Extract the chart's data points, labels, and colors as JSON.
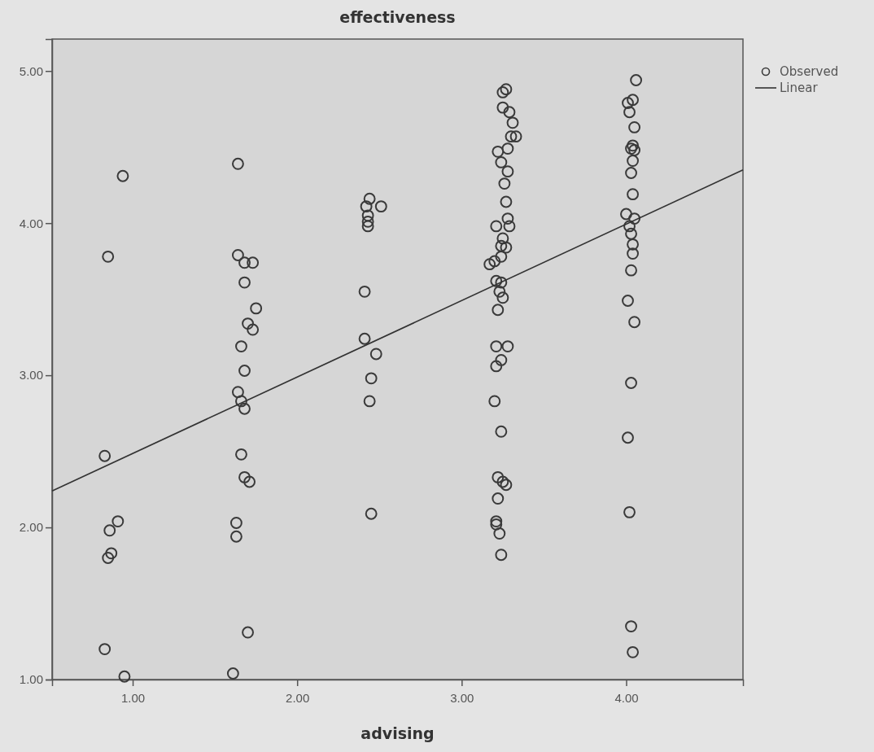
{
  "chart_data": {
    "type": "scatter",
    "title": "effectiveness",
    "xlabel": "advising",
    "xlim": [
      0.51,
      4.71
    ],
    "ylim": [
      1.0,
      5.21
    ],
    "xticks": [
      {
        "value": 1,
        "label": "1.00"
      },
      {
        "value": 2,
        "label": "2.00"
      },
      {
        "value": 3,
        "label": "3.00"
      },
      {
        "value": 4,
        "label": "4.00"
      }
    ],
    "yticks": [
      {
        "value": 1,
        "label": "1.00"
      },
      {
        "value": 2,
        "label": "2.00"
      },
      {
        "value": 3,
        "label": "3.00"
      },
      {
        "value": 4,
        "label": "4.00"
      },
      {
        "value": 5,
        "label": "5.00"
      }
    ],
    "grid": false,
    "legend": "top right",
    "marker": "circle",
    "series": [
      {
        "name": "Observed",
        "color": "#3a3a3a",
        "x": [
          0.94,
          0.85,
          0.83,
          0.91,
          0.86,
          0.87,
          0.85,
          0.83,
          0.95,
          1.64,
          1.64,
          1.68,
          1.73,
          1.68,
          1.75,
          1.7,
          1.73,
          1.66,
          1.68,
          1.64,
          1.66,
          1.68,
          1.66,
          1.68,
          1.71,
          1.63,
          1.63,
          1.7,
          1.61,
          2.44,
          2.42,
          2.43,
          2.51,
          2.43,
          2.43,
          2.41,
          2.41,
          2.48,
          2.45,
          2.44,
          2.45,
          3.27,
          3.25,
          3.25,
          3.29,
          3.31,
          3.3,
          3.33,
          3.28,
          3.22,
          3.24,
          3.28,
          3.26,
          3.27,
          3.28,
          3.21,
          3.29,
          3.25,
          3.24,
          3.27,
          3.24,
          3.2,
          3.17,
          3.21,
          3.24,
          3.23,
          3.25,
          3.22,
          3.21,
          3.28,
          3.24,
          3.21,
          3.2,
          3.24,
          3.22,
          3.25,
          3.27,
          3.22,
          3.21,
          3.21,
          3.23,
          3.24,
          4.06,
          4.01,
          4.04,
          4.02,
          4.05,
          4.04,
          4.03,
          4.05,
          4.04,
          4.03,
          4.04,
          4.0,
          4.05,
          4.02,
          4.03,
          4.04,
          4.04,
          4.03,
          4.01,
          4.05,
          4.03,
          4.01,
          4.02,
          4.03,
          4.04
        ],
        "values": [
          4.31,
          3.78,
          2.47,
          2.04,
          1.98,
          1.83,
          1.8,
          1.2,
          1.02,
          4.39,
          3.79,
          3.74,
          3.74,
          3.61,
          3.44,
          3.34,
          3.3,
          3.19,
          3.03,
          2.89,
          2.83,
          2.78,
          2.48,
          2.33,
          2.3,
          2.03,
          1.94,
          1.31,
          1.04,
          4.16,
          4.11,
          4.05,
          4.11,
          4.01,
          3.98,
          3.55,
          3.24,
          3.14,
          2.98,
          2.83,
          2.09,
          4.88,
          4.86,
          4.76,
          4.73,
          4.66,
          4.57,
          4.57,
          4.49,
          4.47,
          4.4,
          4.34,
          4.26,
          4.14,
          4.03,
          3.98,
          3.98,
          3.9,
          3.85,
          3.84,
          3.78,
          3.75,
          3.73,
          3.62,
          3.61,
          3.55,
          3.51,
          3.43,
          3.19,
          3.19,
          3.1,
          3.06,
          2.83,
          2.63,
          2.33,
          2.3,
          2.28,
          2.19,
          2.04,
          2.02,
          1.96,
          1.82,
          4.94,
          4.79,
          4.81,
          4.73,
          4.63,
          4.51,
          4.49,
          4.48,
          4.41,
          4.33,
          4.19,
          4.06,
          4.03,
          3.98,
          3.93,
          3.86,
          3.8,
          3.69,
          3.49,
          3.35,
          2.95,
          2.59,
          2.1,
          1.35,
          1.18
        ]
      },
      {
        "name": "Linear",
        "type": "line",
        "color": "#333333",
        "line_style": "solid",
        "marker": "none",
        "x": [
          0.51,
          4.71
        ],
        "values": [
          2.24,
          4.35
        ]
      }
    ]
  }
}
